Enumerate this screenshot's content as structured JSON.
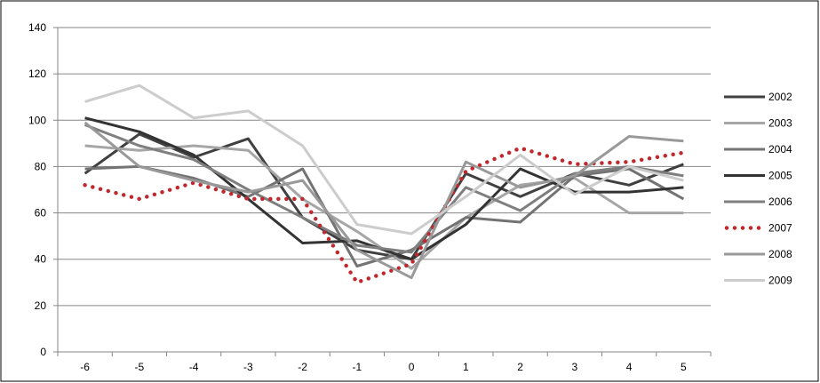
{
  "chart_data": {
    "type": "line",
    "title": "",
    "xlabel": "",
    "ylabel": "",
    "x": [
      -6,
      -5,
      -4,
      -3,
      -2,
      -1,
      0,
      1,
      2,
      3,
      4,
      5
    ],
    "x_tick_labels": [
      "-6",
      "-5",
      "-4",
      "-3",
      "-2",
      "-1",
      "0",
      "1",
      "2",
      "3",
      "4",
      "5"
    ],
    "ylim": [
      0,
      140
    ],
    "y_ticks": [
      0,
      20,
      40,
      60,
      80,
      100,
      120,
      140
    ],
    "y_tick_labels": [
      "0",
      "20",
      "40",
      "60",
      "80",
      "100",
      "120",
      "140"
    ],
    "grid": "horizontal",
    "legend_position": "right",
    "series": [
      {
        "name": "2002",
        "color": "#404040",
        "style": "solid",
        "values": [
          77,
          94,
          84,
          92,
          58,
          44,
          40,
          77,
          67,
          77,
          72,
          81
        ]
      },
      {
        "name": "2003",
        "color": "#a6a6a6",
        "style": "solid",
        "values": [
          89,
          87,
          89,
          87,
          66,
          52,
          36,
          58,
          72,
          75,
          60,
          60
        ]
      },
      {
        "name": "2004",
        "color": "#737373",
        "style": "solid",
        "values": [
          79,
          80,
          75,
          67,
          79,
          37,
          44,
          58,
          56,
          76,
          79,
          66
        ]
      },
      {
        "name": "2005",
        "color": "#333333",
        "style": "solid",
        "values": [
          101,
          95,
          85,
          66,
          47,
          48,
          40,
          55,
          79,
          69,
          69,
          71
        ]
      },
      {
        "name": "2006",
        "color": "#7f7f7f",
        "style": "solid",
        "values": [
          98,
          89,
          83,
          70,
          58,
          46,
          43,
          71,
          61,
          77,
          80,
          76
        ]
      },
      {
        "name": "2007",
        "color": "#c0282d",
        "style": "dotted",
        "values": [
          72,
          66,
          73,
          66,
          66,
          30,
          38,
          78,
          88,
          81,
          82,
          86
        ]
      },
      {
        "name": "2008",
        "color": "#999999",
        "style": "solid",
        "values": [
          99,
          80,
          74,
          69,
          74,
          44,
          32,
          82,
          71,
          76,
          93,
          91
        ]
      },
      {
        "name": "2009",
        "color": "#cccccc",
        "style": "solid",
        "values": [
          108,
          115,
          101,
          104,
          89,
          55,
          51,
          67,
          85,
          68,
          80,
          74
        ]
      }
    ]
  }
}
